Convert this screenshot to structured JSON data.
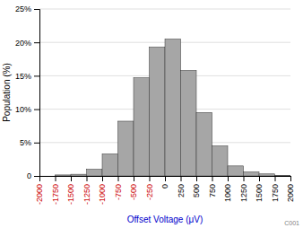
{
  "chart_data": {
    "type": "histogram",
    "bins": [
      -2000,
      -1750,
      -1500,
      -1250,
      -1000,
      -750,
      -500,
      -250,
      0,
      250,
      500,
      750,
      1000,
      1250,
      1500,
      1750,
      2000
    ],
    "values": [
      0.0,
      0.15,
      0.25,
      1.0,
      3.3,
      8.2,
      14.7,
      19.3,
      20.5,
      15.8,
      9.5,
      4.5,
      1.5,
      0.6,
      0.3,
      0.1
    ],
    "color": "#a6a6a6",
    "xlim": [
      -2000,
      2000
    ],
    "ylim": [
      0,
      25
    ],
    "xticks": [
      -2000,
      -1750,
      -1500,
      -1250,
      -1000,
      -750,
      -500,
      -250,
      0,
      250,
      500,
      750,
      1000,
      1250,
      1500,
      1750,
      2000
    ],
    "yticks": [
      0,
      {
        "value": 5,
        "label": "5%"
      },
      {
        "value": 10,
        "label": "10%"
      },
      {
        "value": 15,
        "label": "15%"
      },
      {
        "value": 20,
        "label": "20%"
      },
      {
        "value": 25,
        "label": "25%"
      }
    ],
    "x_label": "Offset Voltage (μV)",
    "y_label": "Population (%)",
    "annotations": [
      "C001"
    ],
    "grid": true
  }
}
